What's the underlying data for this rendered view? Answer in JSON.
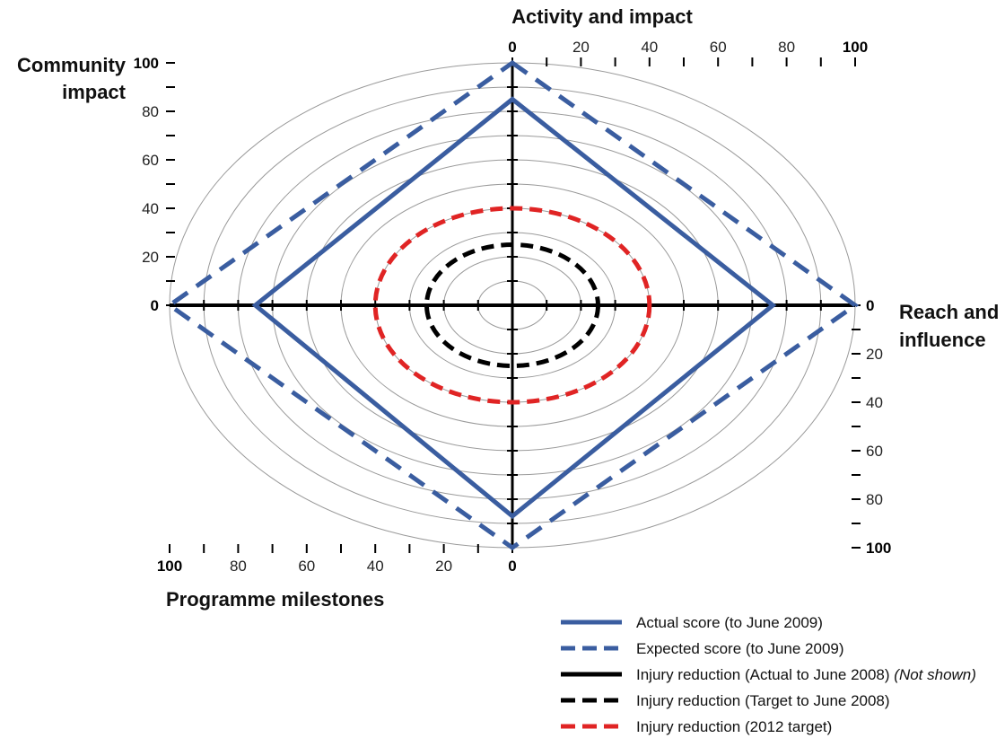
{
  "chart_data": {
    "type": "radar",
    "axes": [
      {
        "name": "Activity and impact",
        "direction": "up",
        "ticks": [
          0,
          20,
          40,
          60,
          80,
          100
        ],
        "range": [
          0,
          100
        ]
      },
      {
        "name": "Reach and influence",
        "direction": "right",
        "ticks": [
          0,
          20,
          40,
          60,
          80,
          100
        ],
        "range": [
          0,
          100
        ]
      },
      {
        "name": "Programme milestones",
        "direction": "down",
        "ticks": [
          100,
          80,
          60,
          40,
          20,
          0
        ],
        "range": [
          0,
          100
        ]
      },
      {
        "name": "Community impact",
        "direction": "left",
        "ticks": [
          100,
          80,
          60,
          40,
          20,
          0
        ],
        "range": [
          0,
          100
        ]
      }
    ],
    "gridlines": [
      10,
      20,
      30,
      40,
      50,
      60,
      70,
      80,
      90,
      100
    ],
    "series": [
      {
        "name": "Actual score (to June 2009)",
        "color": "#3a5da0",
        "dash": "solid",
        "shape": "polygon",
        "values": {
          "Activity and impact": 85,
          "Reach and influence": 76,
          "Programme milestones": 87,
          "Community impact": 75
        }
      },
      {
        "name": "Expected score (to June 2009)",
        "color": "#3a5da0",
        "dash": "dashed",
        "shape": "polygon",
        "values": {
          "Activity and impact": 100,
          "Reach and influence": 100,
          "Programme milestones": 100,
          "Community impact": 100
        }
      },
      {
        "name": "Injury reduction (Actual to June 2008)",
        "note": "(Not shown)",
        "color": "#000000",
        "dash": "solid",
        "shape": "ellipse",
        "value": null
      },
      {
        "name": "Injury reduction (Target to June 2008)",
        "color": "#000000",
        "dash": "dashed",
        "shape": "ellipse",
        "value": 25
      },
      {
        "name": "Injury reduction (2012 target)",
        "color": "#e02424",
        "dash": "dashed",
        "shape": "ellipse",
        "value": 40
      }
    ],
    "legend_position": "bottom-right"
  }
}
